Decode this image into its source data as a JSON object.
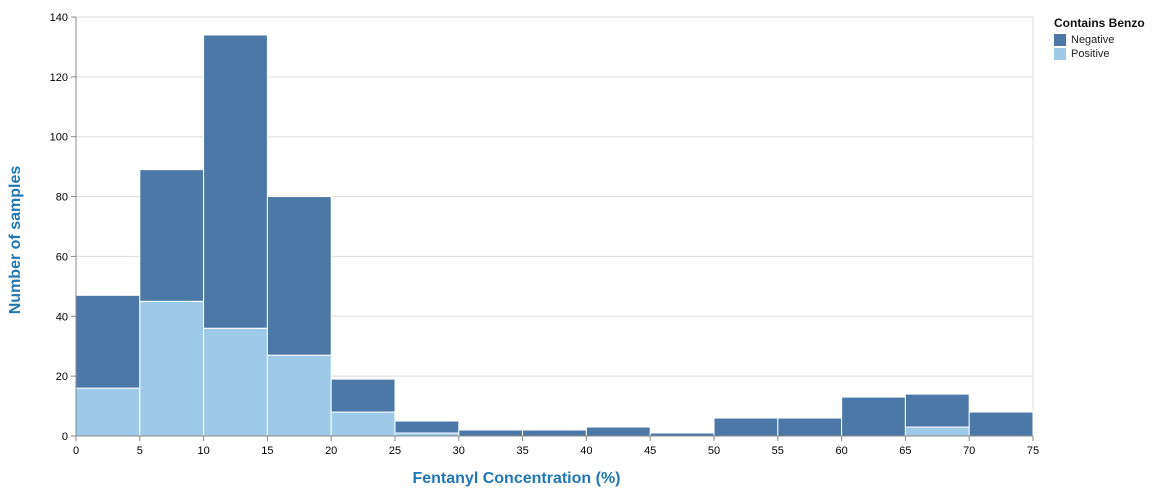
{
  "chart_data": {
    "type": "bar",
    "stacked": true,
    "x_bins": [
      [
        0,
        5
      ],
      [
        5,
        10
      ],
      [
        10,
        15
      ],
      [
        15,
        20
      ],
      [
        20,
        25
      ],
      [
        25,
        30
      ],
      [
        30,
        35
      ],
      [
        35,
        40
      ],
      [
        40,
        45
      ],
      [
        45,
        50
      ],
      [
        50,
        55
      ],
      [
        55,
        60
      ],
      [
        60,
        65
      ],
      [
        65,
        70
      ],
      [
        70,
        75
      ]
    ],
    "x_ticks": [
      "0",
      "5",
      "10",
      "15",
      "20",
      "25",
      "30",
      "35",
      "40",
      "45",
      "50",
      "55",
      "60",
      "65",
      "70",
      "75"
    ],
    "y_ticks": [
      "0",
      "20",
      "40",
      "60",
      "80",
      "100",
      "120",
      "140"
    ],
    "series": [
      {
        "name": "Positive",
        "color": "#9ecae9",
        "values": [
          16,
          45,
          36,
          27,
          8,
          1,
          0,
          0,
          0,
          0,
          0,
          0,
          0,
          3,
          0
        ]
      },
      {
        "name": "Negative",
        "color": "#4c78a8",
        "values": [
          31,
          44,
          98,
          53,
          11,
          4,
          2,
          2,
          3,
          1,
          6,
          6,
          13,
          11,
          8
        ]
      }
    ],
    "xlabel": "Fentanyl Concentration (%)",
    "ylabel": "Number of samples",
    "xlim": [
      0,
      75
    ],
    "ylim": [
      0,
      140
    ],
    "grid": true,
    "label_color": "#1f77b4",
    "legend": {
      "title": "Contains Benzo",
      "placement": "top-right",
      "items": [
        {
          "label": "Negative",
          "color": "#4c78a8"
        },
        {
          "label": "Positive",
          "color": "#9ecae9"
        }
      ]
    }
  }
}
